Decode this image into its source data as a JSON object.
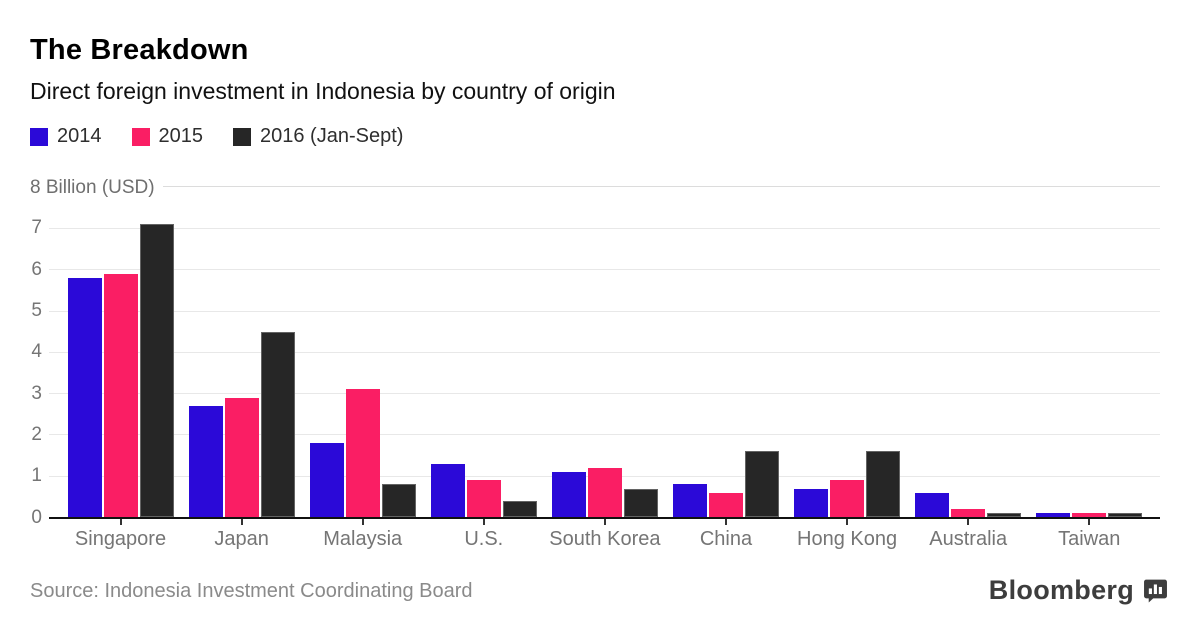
{
  "header": {
    "title": "The Breakdown",
    "subtitle": "Direct foreign investment in Indonesia by country of origin"
  },
  "chart_data": {
    "type": "bar",
    "title": "The Breakdown",
    "subtitle": "Direct foreign investment in Indonesia by country of origin",
    "axis_top_label": "8 Billion (USD)",
    "unit": "Billion (USD)",
    "categories": [
      "Singapore",
      "Japan",
      "Malaysia",
      "U.S.",
      "South Korea",
      "China",
      "Hong Kong",
      "Australia",
      "Taiwan"
    ],
    "series": [
      {
        "name": "2014",
        "color": "#2b09d8",
        "values": [
          5.8,
          2.7,
          1.8,
          1.3,
          1.1,
          0.8,
          0.7,
          0.6,
          0.1
        ]
      },
      {
        "name": "2015",
        "color": "#fa1e64",
        "values": [
          5.9,
          2.9,
          3.1,
          0.9,
          1.2,
          0.6,
          0.9,
          0.2,
          0.1
        ]
      },
      {
        "name": "2016 (Jan-Sept)",
        "color": "#262626",
        "values": [
          7.1,
          4.5,
          0.8,
          0.4,
          0.7,
          1.6,
          1.6,
          0.1,
          0.1
        ]
      }
    ],
    "ylim": [
      0,
      8
    ],
    "yticks": [
      0,
      1,
      2,
      3,
      4,
      5,
      6,
      7
    ],
    "grid": true,
    "legend_position": "top",
    "colors": {
      "grid": "#e8e8e8",
      "baseline": "#111111",
      "tick_text": "#757575"
    }
  },
  "footer": {
    "source": "Source: Indonesia Investment Coordinating Board",
    "brand": "Bloomberg"
  }
}
